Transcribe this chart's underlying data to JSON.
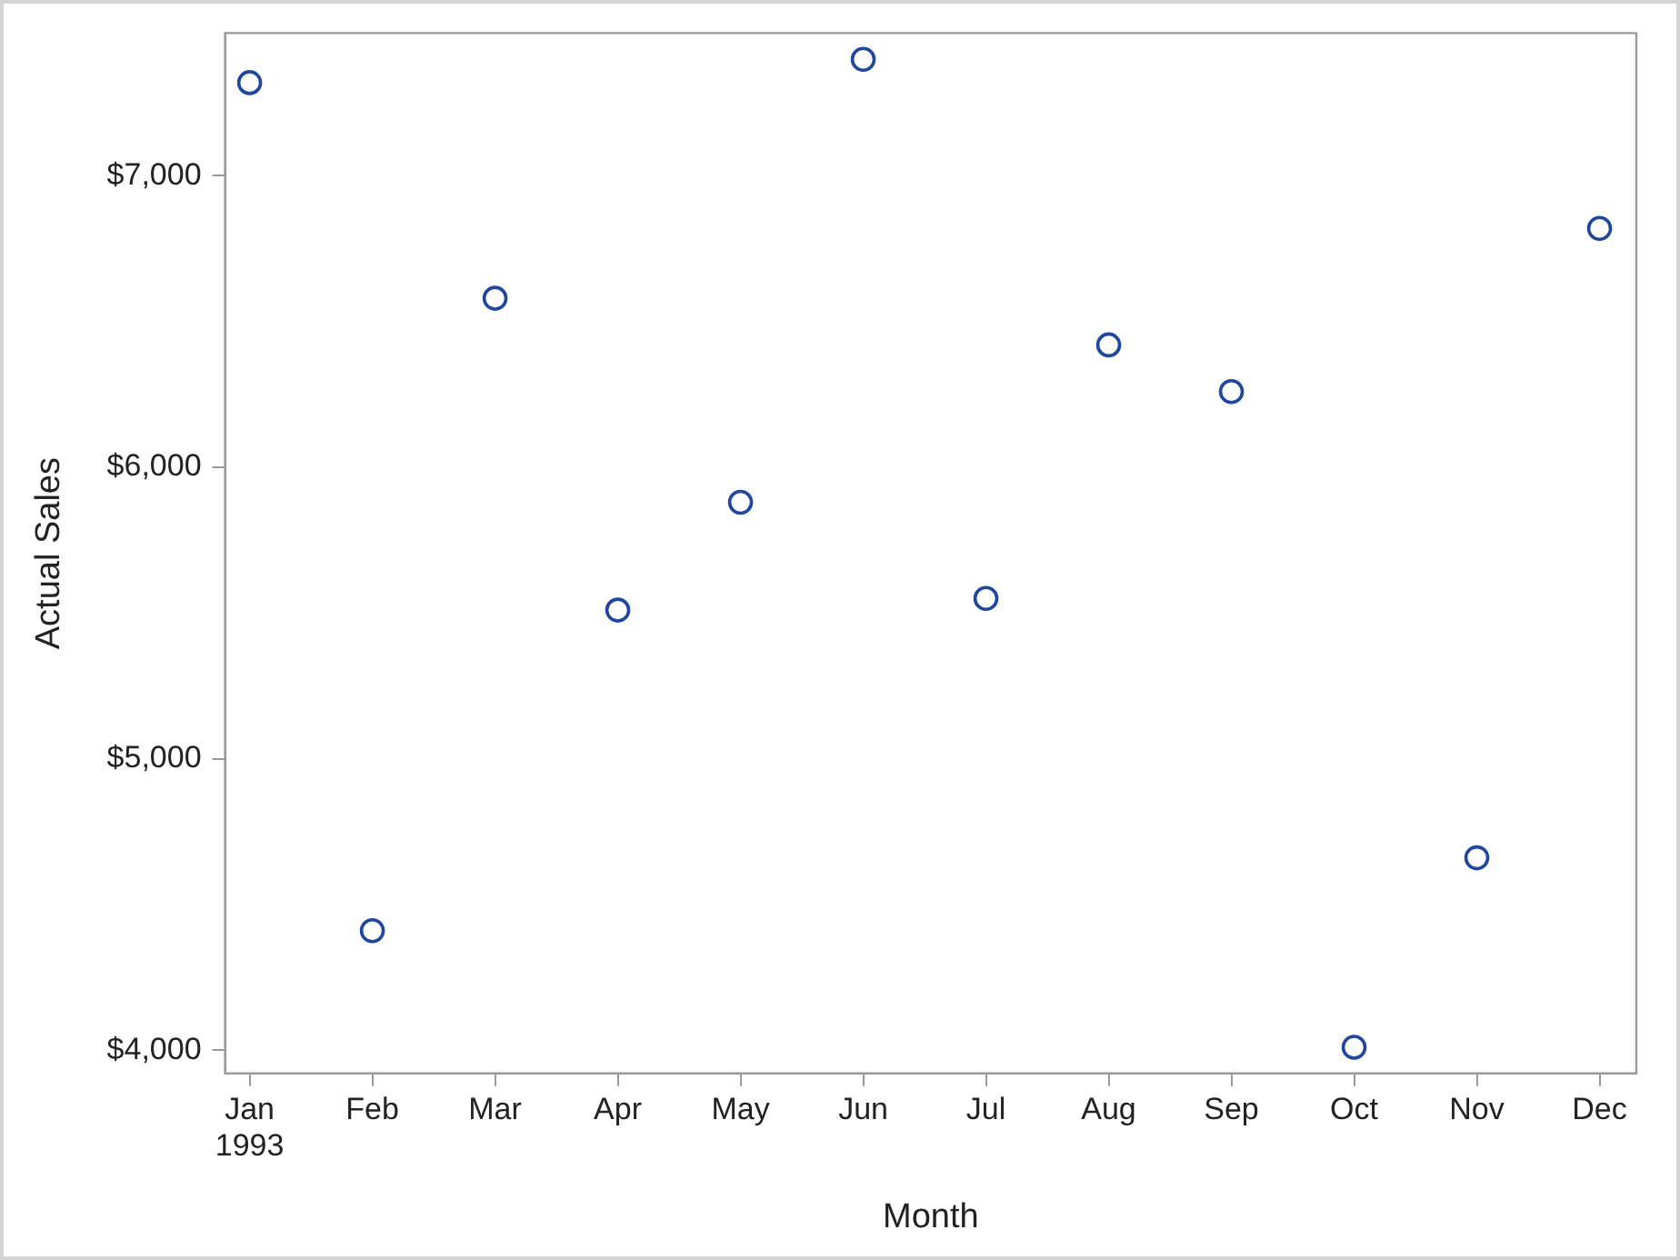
{
  "chart_data": {
    "type": "scatter",
    "xlabel": "Month",
    "ylabel": "Actual Sales",
    "categories": [
      "Jan\n1993",
      "Feb",
      "Mar",
      "Apr",
      "May",
      "Jun",
      "Jul",
      "Aug",
      "Sep",
      "Oct",
      "Nov",
      "Dec"
    ],
    "series": [
      {
        "color": "#2047a0",
        "values": [
          7320,
          4410,
          6580,
          5510,
          5880,
          7400,
          5550,
          6420,
          6260,
          4010,
          4660,
          6820
        ]
      }
    ],
    "ylim": [
      3920,
      7490
    ],
    "yticks": [
      {
        "value": 4000,
        "label": "$4,000"
      },
      {
        "value": 5000,
        "label": "$5,000"
      },
      {
        "value": 6000,
        "label": "$6,000"
      },
      {
        "value": 7000,
        "label": "$7,000"
      }
    ],
    "marker": "circle",
    "grid": false,
    "legend": false
  }
}
